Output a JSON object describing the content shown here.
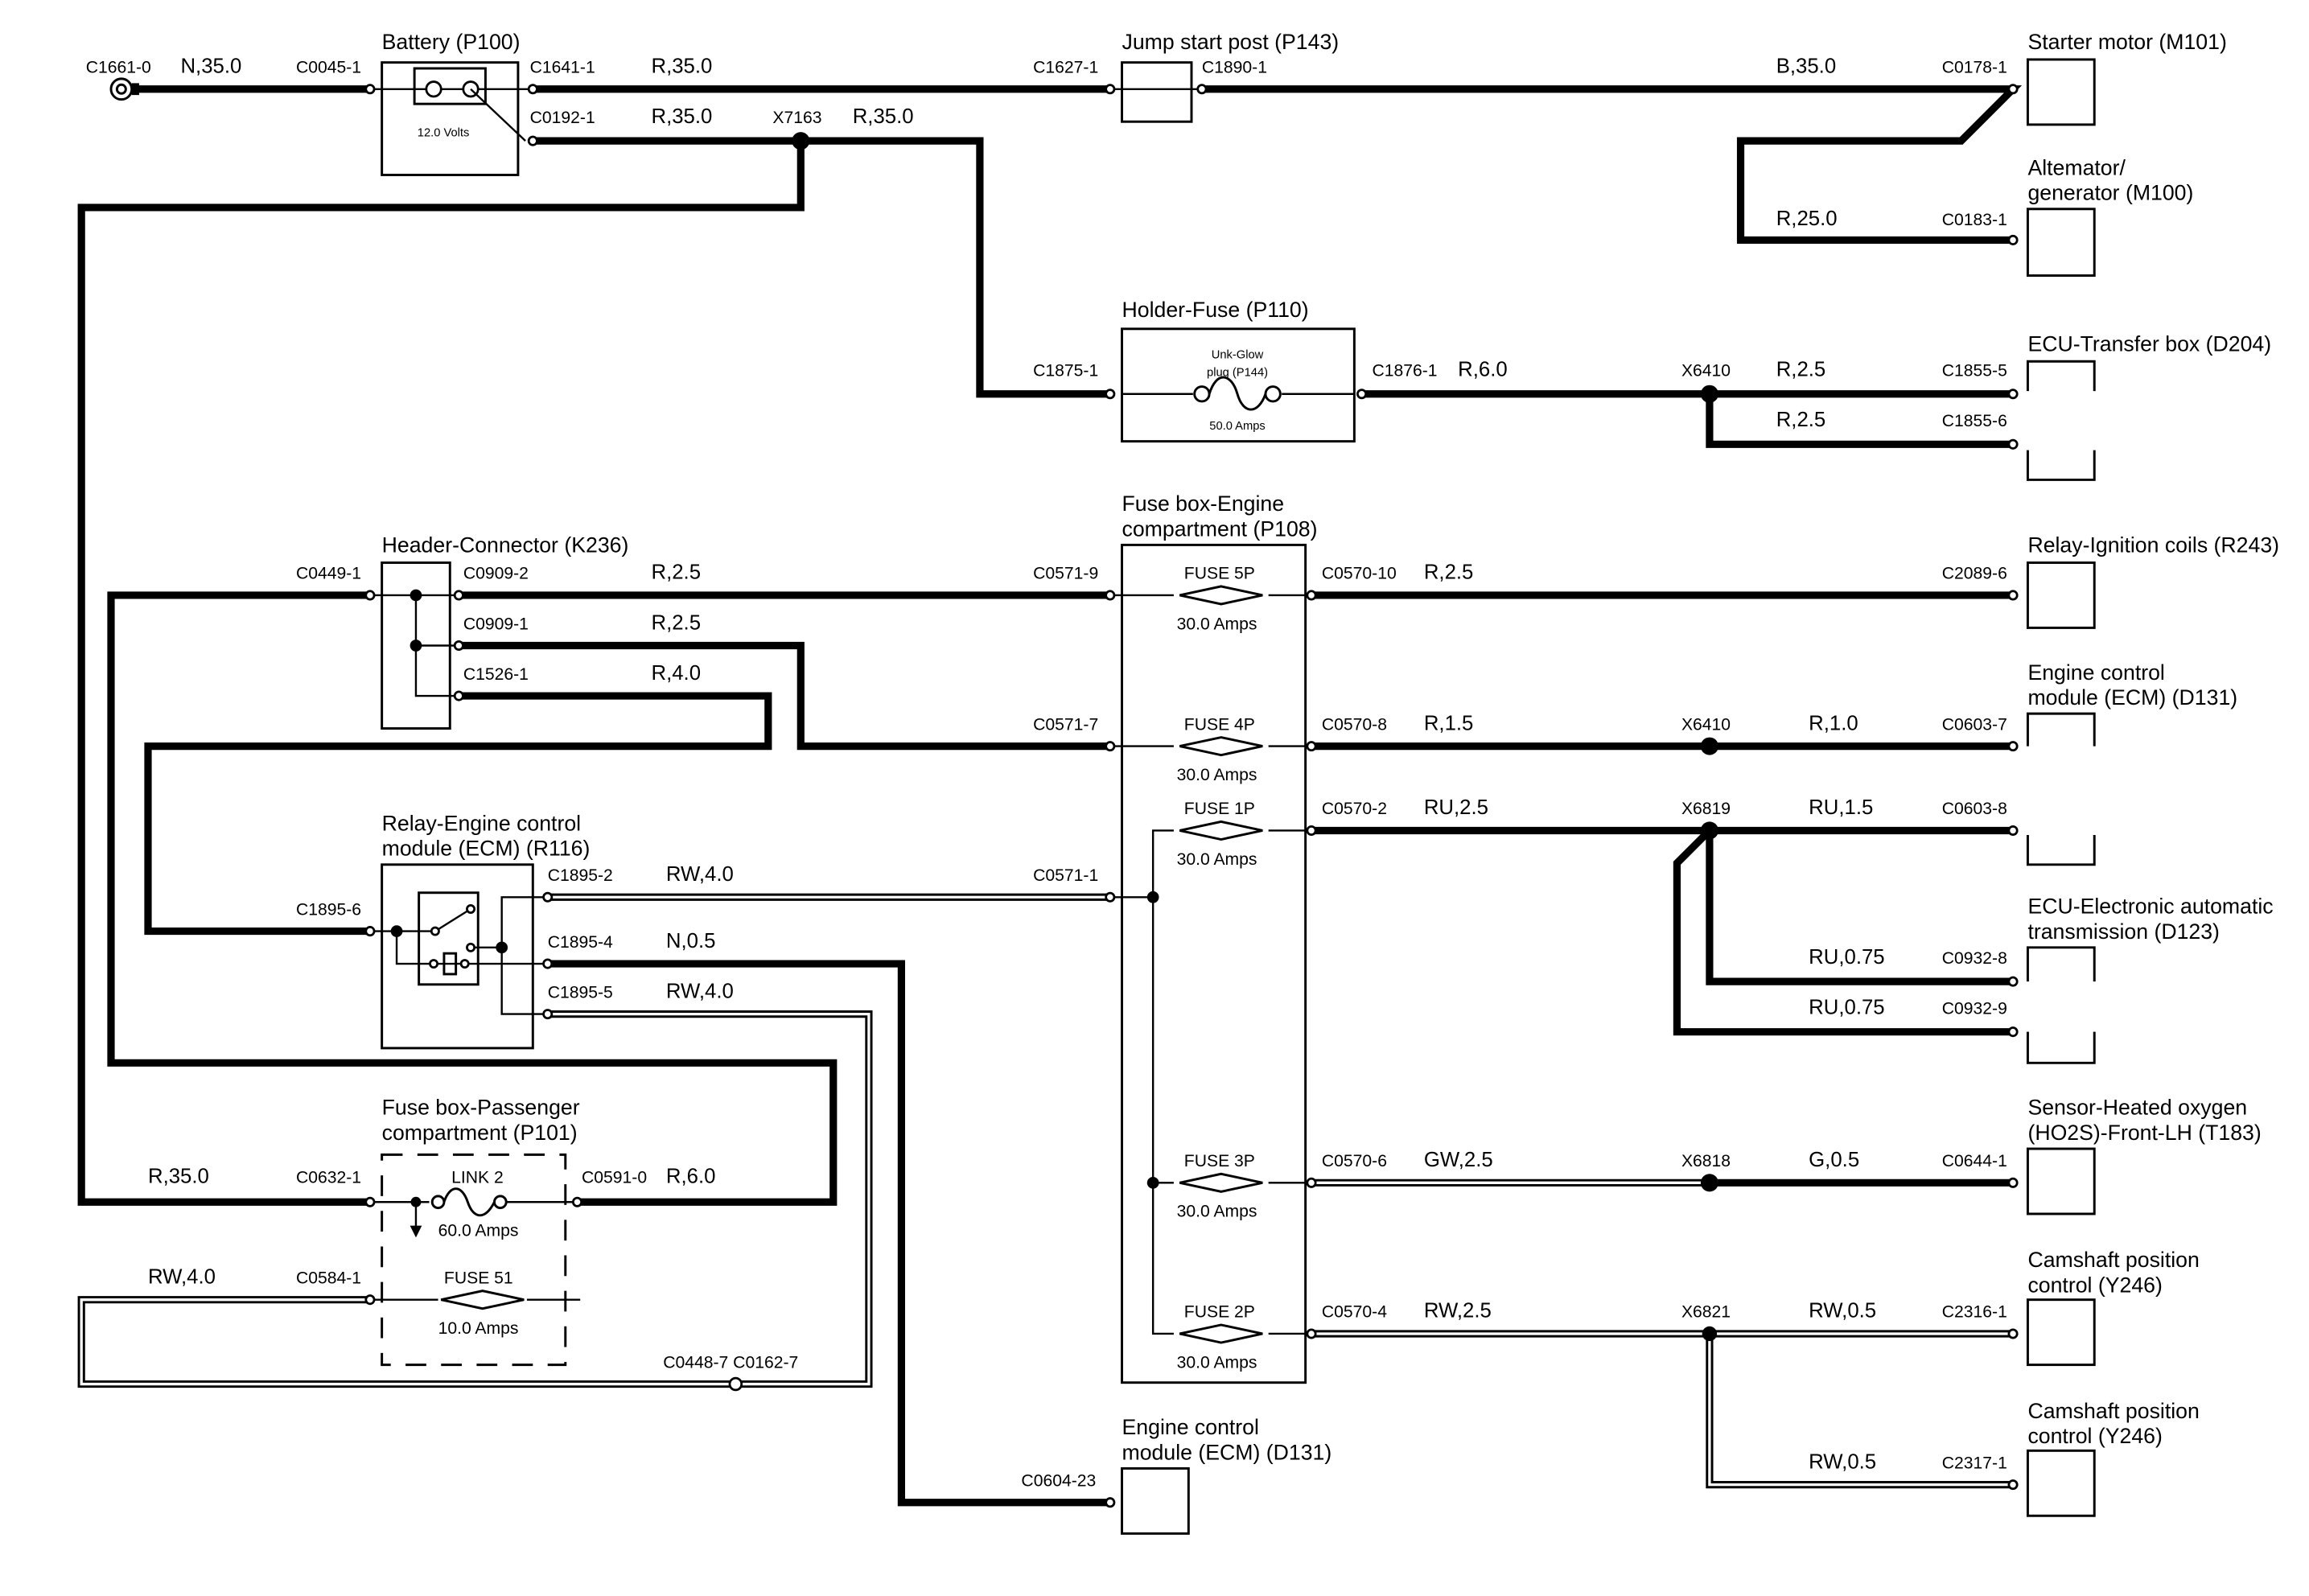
{
  "components": {
    "battery": {
      "title": "Battery (P100)",
      "rating": "12.0 Volts"
    },
    "jump_start": {
      "title": "Jump start post (P143)"
    },
    "starter": {
      "title": "Starter motor (M101)"
    },
    "alternator": {
      "title_1": "Altemator/",
      "title_2": "generator (M100)"
    },
    "holder_fuse": {
      "title": "Holder-Fuse (P110)",
      "fuse_1": "Unk-Glow",
      "fuse_2": "plug (P144)",
      "rating": "50.0 Amps"
    },
    "ecu_transfer": {
      "title": "ECU-Transfer box (D204)"
    },
    "fuse_box_engine": {
      "title_1": "Fuse box-Engine",
      "title_2": "compartment (P108)",
      "fuses": [
        {
          "name": "FUSE 5P",
          "rating": "30.0 Amps"
        },
        {
          "name": "FUSE 4P",
          "rating": "30.0 Amps"
        },
        {
          "name": "FUSE 1P",
          "rating": "30.0 Amps"
        },
        {
          "name": "FUSE 3P",
          "rating": "30.0 Amps"
        },
        {
          "name": "FUSE 2P",
          "rating": "30.0 Amps"
        }
      ]
    },
    "header_connector": {
      "title": "Header-Connector (K236)"
    },
    "relay_ignition": {
      "title": "Relay-Ignition coils (R243)"
    },
    "ecm_d131_right": {
      "title_1": "Engine control",
      "title_2": "module (ECM) (D131)"
    },
    "relay_ecm": {
      "title_1": "Relay-Engine control",
      "title_2": "module (ECM) (R116)"
    },
    "ecu_trans": {
      "title_1": "ECU-Electronic automatic",
      "title_2": "transmission (D123)"
    },
    "fuse_box_pass": {
      "title_1": "Fuse box-Passenger",
      "title_2": "compartment (P101)",
      "link": {
        "name": "LINK 2",
        "rating": "60.0 Amps"
      },
      "fuse": {
        "name": "FUSE 51",
        "rating": "10.0 Amps"
      }
    },
    "o2_sensor": {
      "title_1": "Sensor-Heated oxygen",
      "title_2": "(HO2S)-Front-LH (T183)"
    },
    "camshaft_1": {
      "title_1": "Camshaft position",
      "title_2": "control (Y246)"
    },
    "camshaft_2": {
      "title_1": "Camshaft position",
      "title_2": "control (Y246)"
    },
    "ecm_d131_bottom": {
      "title_1": "Engine control",
      "title_2": "module (ECM) (D131)"
    }
  },
  "connectors": {
    "c1661": "C1661-0",
    "c0045": "C0045-1",
    "c1641": "C1641-1",
    "c1627": "C1627-1",
    "c1890": "C1890-1",
    "c0178": "C0178-1",
    "c0192": "C0192-1",
    "c0183": "C0183-1",
    "c1875": "C1875-1",
    "c1876": "C1876-1",
    "c1855_5": "C1855-5",
    "c1855_6": "C1855-6",
    "c0449": "C0449-1",
    "c0909_2": "C0909-2",
    "c0909_1": "C0909-1",
    "c1526": "C1526-1",
    "c0571_9": "C0571-9",
    "c0571_7": "C0571-7",
    "c0571_1": "C0571-1",
    "c0570_10": "C0570-10",
    "c0570_8": "C0570-8",
    "c0570_2": "C0570-2",
    "c0570_6": "C0570-6",
    "c0570_4": "C0570-4",
    "c2089": "C2089-6",
    "c0603_7": "C0603-7",
    "c0603_8": "C0603-8",
    "c0932_8": "C0932-8",
    "c0932_9": "C0932-9",
    "c0644": "C0644-1",
    "c2316": "C2316-1",
    "c2317": "C2317-1",
    "c1895_2": "C1895-2",
    "c1895_4": "C1895-4",
    "c1895_5": "C1895-5",
    "c1895_6": "C1895-6",
    "c0632": "C0632-1",
    "c0591": "C0591-0",
    "c0584": "C0584-1",
    "c0448_c0162": "C0448-7 C0162-7",
    "c0604": "C0604-23"
  },
  "splices": {
    "x7163": "X7163",
    "x6410_a": "X6410",
    "x6410_b": "X6410",
    "x6819": "X6819",
    "x6818": "X6818",
    "x6821": "X6821"
  },
  "wires": {
    "n350": "N,35.0",
    "r350_a": "R,35.0",
    "r350_b": "R,35.0",
    "r350_c": "R,35.0",
    "b350": "B,35.0",
    "r250": "R,25.0",
    "r60_a": "R,6.0",
    "r25_a": "R,2.5",
    "r25_b": "R,2.5",
    "r25_hc1": "R,2.5",
    "r25_hc2": "R,2.5",
    "r40_hc": "R,4.0",
    "r25_f5": "R,2.5",
    "r15": "R,1.5",
    "r10": "R,1.0",
    "ru25": "RU,2.5",
    "ru15": "RU,1.5",
    "ru075_a": "RU,0.75",
    "ru075_b": "RU,0.75",
    "rw40_a": "RW,4.0",
    "n05": "N,0.5",
    "rw40_b": "RW,4.0",
    "r350_d": "R,35.0",
    "r60_b": "R,6.0",
    "rw40_c": "RW,4.0",
    "gw25": "GW,2.5",
    "g05": "G,0.5",
    "rw25": "RW,2.5",
    "rw05_a": "RW,0.5",
    "rw05_b": "RW,0.5"
  }
}
